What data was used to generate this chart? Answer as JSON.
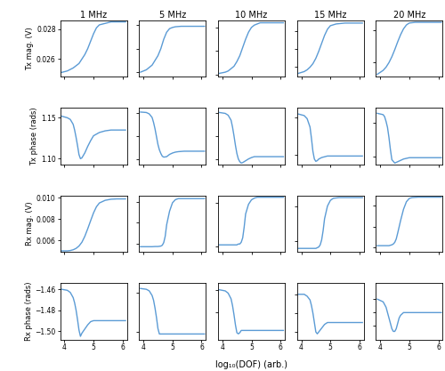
{
  "col_titles": [
    "1 MHz",
    "5 MHz",
    "10 MHz",
    "15 MHz",
    "20 MHz"
  ],
  "row_labels": [
    "Tx mag. (V)",
    "Tx phase (rads)",
    "Rx mag. (V)",
    "Rx phase (rads)"
  ],
  "xlabel": "log₁₀(DOF) (arb.)",
  "line_color": "#5B9BD5",
  "line_width": 1.0,
  "x_ticks": [
    4,
    5,
    6
  ],
  "xlim": [
    3.85,
    6.15
  ],
  "subplots": {
    "tx_mag": {
      "1": {
        "ylim": [
          0.0248,
          0.0286
        ],
        "yticks": [
          0.026,
          0.028
        ],
        "x": [
          3.9,
          4.1,
          4.3,
          4.5,
          4.6,
          4.7,
          4.8,
          4.9,
          5.0,
          5.1,
          5.2,
          5.4,
          5.6,
          5.8,
          6.0,
          6.1
        ],
        "y": [
          0.0251,
          0.0252,
          0.0254,
          0.0257,
          0.026,
          0.0263,
          0.0267,
          0.0272,
          0.0277,
          0.0281,
          0.0283,
          0.0284,
          0.0285,
          0.0285,
          0.0285,
          0.0285
        ]
      },
      "5": {
        "ylim": [
          0.108,
          0.132
        ],
        "yticks": [
          0.11,
          0.12,
          0.13
        ],
        "x": [
          3.9,
          4.1,
          4.2,
          4.3,
          4.4,
          4.5,
          4.6,
          4.7,
          4.8,
          4.9,
          5.0,
          5.1,
          5.3,
          5.5,
          5.8,
          6.1
        ],
        "y": [
          0.11,
          0.111,
          0.112,
          0.113,
          0.115,
          0.117,
          0.12,
          0.124,
          0.127,
          0.1285,
          0.129,
          0.1293,
          0.1295,
          0.1295,
          0.1295,
          0.1295
        ]
      },
      "10": {
        "ylim": [
          0.218,
          0.266
        ],
        "yticks": [
          0.22,
          0.24,
          0.26
        ],
        "x": [
          3.9,
          4.1,
          4.2,
          4.3,
          4.4,
          4.5,
          4.6,
          4.7,
          4.8,
          4.9,
          5.0,
          5.1,
          5.3,
          5.5,
          5.8,
          6.1
        ],
        "y": [
          0.221,
          0.222,
          0.223,
          0.225,
          0.227,
          0.231,
          0.236,
          0.243,
          0.25,
          0.256,
          0.26,
          0.262,
          0.264,
          0.264,
          0.264,
          0.264
        ]
      },
      "15": {
        "ylim": [
          0.328,
          0.392
        ],
        "yticks": [
          0.34,
          0.36,
          0.38
        ],
        "x": [
          3.9,
          4.1,
          4.2,
          4.3,
          4.4,
          4.5,
          4.6,
          4.7,
          4.8,
          4.9,
          5.0,
          5.2,
          5.5,
          5.8,
          6.1
        ],
        "y": [
          0.332,
          0.334,
          0.336,
          0.339,
          0.343,
          0.349,
          0.357,
          0.366,
          0.375,
          0.382,
          0.386,
          0.388,
          0.389,
          0.389,
          0.389
        ]
      },
      "20": {
        "ylim": [
          0.428,
          0.515
        ],
        "yticks": [
          0.45,
          0.5
        ],
        "x": [
          3.9,
          4.0,
          4.1,
          4.2,
          4.3,
          4.4,
          4.5,
          4.6,
          4.7,
          4.8,
          4.9,
          5.0,
          5.2,
          5.5,
          5.8,
          6.1
        ],
        "y": [
          0.432,
          0.435,
          0.438,
          0.443,
          0.45,
          0.459,
          0.47,
          0.482,
          0.493,
          0.502,
          0.508,
          0.511,
          0.512,
          0.512,
          0.512,
          0.512
        ]
      }
    },
    "tx_phase": {
      "1": {
        "ylim": [
          1.093,
          1.162
        ],
        "yticks": [
          1.1,
          1.15
        ],
        "x": [
          3.9,
          4.1,
          4.2,
          4.3,
          4.35,
          4.4,
          4.45,
          4.5,
          4.55,
          4.6,
          4.7,
          4.8,
          4.9,
          5.0,
          5.2,
          5.4,
          5.6,
          5.8,
          6.1
        ],
        "y": [
          1.152,
          1.15,
          1.148,
          1.142,
          1.135,
          1.126,
          1.116,
          1.105,
          1.1,
          1.101,
          1.107,
          1.115,
          1.122,
          1.128,
          1.132,
          1.134,
          1.135,
          1.135,
          1.135
        ]
      },
      "5": {
        "ylim": [
          1.438,
          1.562
        ],
        "yticks": [
          1.45,
          1.5,
          1.55
        ],
        "x": [
          3.9,
          4.1,
          4.2,
          4.3,
          4.35,
          4.4,
          4.45,
          4.5,
          4.55,
          4.6,
          4.65,
          4.7,
          4.8,
          4.9,
          5.0,
          5.1,
          5.2,
          5.4,
          5.6,
          6.1
        ],
        "y": [
          1.553,
          1.552,
          1.549,
          1.541,
          1.53,
          1.516,
          1.499,
          1.482,
          1.47,
          1.462,
          1.456,
          1.454,
          1.455,
          1.46,
          1.463,
          1.465,
          1.466,
          1.467,
          1.467,
          1.467
        ]
      },
      "10": {
        "ylim": [
          1.488,
          1.612
        ],
        "yticks": [
          1.5,
          1.55,
          1.6
        ],
        "x": [
          3.9,
          4.1,
          4.2,
          4.3,
          4.35,
          4.4,
          4.45,
          4.5,
          4.55,
          4.6,
          4.65,
          4.7,
          4.8,
          4.9,
          5.0,
          5.1,
          5.2,
          5.4,
          5.6,
          6.1
        ],
        "y": [
          1.602,
          1.6,
          1.596,
          1.585,
          1.57,
          1.551,
          1.53,
          1.512,
          1.5,
          1.494,
          1.491,
          1.492,
          1.496,
          1.5,
          1.503,
          1.505,
          1.505,
          1.505,
          1.505,
          1.505
        ]
      },
      "15": {
        "ylim": [
          1.538,
          1.612
        ],
        "yticks": [
          1.55,
          1.6
        ],
        "x": [
          3.9,
          4.1,
          4.2,
          4.3,
          4.35,
          4.4,
          4.45,
          4.5,
          4.55,
          4.6,
          4.65,
          4.7,
          4.8,
          4.9,
          5.0,
          5.1,
          5.2,
          5.4,
          5.6,
          6.1
        ],
        "y": [
          1.604,
          1.602,
          1.598,
          1.587,
          1.572,
          1.555,
          1.545,
          1.542,
          1.543,
          1.545,
          1.546,
          1.547,
          1.548,
          1.549,
          1.549,
          1.549,
          1.549,
          1.549,
          1.549,
          1.549
        ]
      },
      "20": {
        "ylim": [
          1.538,
          1.622
        ],
        "yticks": [
          1.55,
          1.6
        ],
        "x": [
          3.9,
          4.1,
          4.15,
          4.2,
          4.25,
          4.3,
          4.35,
          4.4,
          4.5,
          4.6,
          4.7,
          4.8,
          4.9,
          5.0,
          5.1,
          5.2,
          5.4,
          5.6,
          6.1
        ],
        "y": [
          1.614,
          1.612,
          1.609,
          1.602,
          1.593,
          1.578,
          1.56,
          1.545,
          1.54,
          1.542,
          1.544,
          1.546,
          1.547,
          1.548,
          1.548,
          1.548,
          1.548,
          1.548,
          1.548
        ]
      }
    },
    "rx_mag": {
      "1": {
        "ylim": [
          0.00495,
          0.0102
        ],
        "yticks": [
          0.006,
          0.008,
          0.01
        ],
        "x": [
          3.9,
          4.1,
          4.2,
          4.3,
          4.4,
          4.5,
          4.6,
          4.7,
          4.8,
          4.9,
          5.0,
          5.1,
          5.2,
          5.4,
          5.6,
          5.8,
          6.1
        ],
        "y": [
          0.00505,
          0.00505,
          0.00508,
          0.00515,
          0.00528,
          0.0055,
          0.00585,
          0.0064,
          0.0071,
          0.00785,
          0.00858,
          0.00915,
          0.0095,
          0.00975,
          0.00985,
          0.00988,
          0.00988
        ]
      },
      "5": {
        "ylim": [
          0.026,
          0.053
        ],
        "yticks": [
          0.03,
          0.04,
          0.05
        ],
        "x": [
          3.9,
          4.1,
          4.2,
          4.3,
          4.4,
          4.5,
          4.55,
          4.6,
          4.65,
          4.7,
          4.75,
          4.8,
          4.9,
          5.0,
          5.1,
          5.2,
          5.4,
          5.6,
          6.1
        ],
        "y": [
          0.0285,
          0.0285,
          0.0285,
          0.0285,
          0.0286,
          0.0286,
          0.0287,
          0.0288,
          0.0292,
          0.0305,
          0.0335,
          0.039,
          0.0455,
          0.0495,
          0.051,
          0.0515,
          0.0515,
          0.0515,
          0.0515
        ]
      },
      "10": {
        "ylim": [
          0.044,
          0.108
        ],
        "yticks": [
          0.05,
          0.1
        ],
        "x": [
          3.9,
          4.1,
          4.2,
          4.3,
          4.4,
          4.5,
          4.55,
          4.6,
          4.65,
          4.7,
          4.75,
          4.8,
          4.9,
          5.0,
          5.1,
          5.2,
          5.4,
          5.6,
          6.1
        ],
        "y": [
          0.052,
          0.052,
          0.052,
          0.052,
          0.052,
          0.052,
          0.053,
          0.053,
          0.055,
          0.06,
          0.072,
          0.087,
          0.098,
          0.103,
          0.105,
          0.106,
          0.106,
          0.106,
          0.106
        ]
      },
      "15": {
        "ylim": [
          0.085,
          0.165
        ],
        "yticks": [
          0.1,
          0.15
        ],
        "x": [
          3.9,
          4.1,
          4.2,
          4.3,
          4.4,
          4.45,
          4.5,
          4.55,
          4.6,
          4.65,
          4.7,
          4.75,
          4.8,
          4.9,
          5.0,
          5.1,
          5.3,
          5.5,
          6.1
        ],
        "y": [
          0.09,
          0.09,
          0.09,
          0.09,
          0.09,
          0.09,
          0.09,
          0.091,
          0.092,
          0.095,
          0.102,
          0.115,
          0.132,
          0.15,
          0.158,
          0.161,
          0.162,
          0.162,
          0.162
        ]
      },
      "20": {
        "ylim": [
          0.09,
          0.225
        ],
        "yticks": [
          0.1,
          0.15,
          0.2
        ],
        "x": [
          3.9,
          4.0,
          4.1,
          4.15,
          4.2,
          4.25,
          4.3,
          4.35,
          4.4,
          4.45,
          4.5,
          4.55,
          4.6,
          4.7,
          4.8,
          4.9,
          5.0,
          5.1,
          5.3,
          5.5,
          6.1
        ],
        "y": [
          0.105,
          0.105,
          0.105,
          0.105,
          0.105,
          0.105,
          0.105,
          0.106,
          0.107,
          0.109,
          0.113,
          0.121,
          0.135,
          0.165,
          0.192,
          0.21,
          0.218,
          0.22,
          0.221,
          0.221,
          0.221
        ]
      }
    },
    "rx_phase": {
      "1": {
        "ylim": [
          -1.508,
          -1.454
        ],
        "yticks": [
          -1.5,
          -1.48,
          -1.46
        ],
        "x": [
          3.9,
          4.1,
          4.2,
          4.3,
          4.35,
          4.4,
          4.45,
          4.5,
          4.55,
          4.6,
          4.7,
          4.8,
          4.9,
          5.0,
          5.1,
          5.2,
          5.5,
          6.1
        ],
        "y": [
          -1.46,
          -1.461,
          -1.463,
          -1.468,
          -1.473,
          -1.48,
          -1.489,
          -1.499,
          -1.505,
          -1.502,
          -1.498,
          -1.494,
          -1.491,
          -1.49,
          -1.49,
          -1.49,
          -1.49,
          -1.49
        ]
      },
      "5": {
        "ylim": [
          -1.51,
          -1.438
        ],
        "yticks": [
          -1.5,
          -1.45
        ],
        "x": [
          3.9,
          4.1,
          4.2,
          4.3,
          4.35,
          4.4,
          4.45,
          4.5,
          4.55,
          4.6,
          4.65,
          4.7,
          4.8,
          4.9,
          5.0,
          5.1,
          5.3,
          5.6,
          6.1
        ],
        "y": [
          -1.445,
          -1.446,
          -1.448,
          -1.454,
          -1.46,
          -1.47,
          -1.482,
          -1.496,
          -1.503,
          -1.503,
          -1.503,
          -1.503,
          -1.503,
          -1.503,
          -1.503,
          -1.503,
          -1.503,
          -1.503,
          -1.503
        ]
      },
      "10": {
        "ylim": [
          -1.524,
          -1.474
        ],
        "yticks": [
          -1.5,
          -1.48
        ],
        "x": [
          3.9,
          4.1,
          4.2,
          4.3,
          4.35,
          4.4,
          4.45,
          4.5,
          4.55,
          4.6,
          4.65,
          4.7,
          4.8,
          4.9,
          5.0,
          5.1,
          5.3,
          5.6,
          6.1
        ],
        "y": [
          -1.48,
          -1.481,
          -1.483,
          -1.488,
          -1.494,
          -1.502,
          -1.511,
          -1.518,
          -1.519,
          -1.518,
          -1.516,
          -1.516,
          -1.516,
          -1.516,
          -1.516,
          -1.516,
          -1.516,
          -1.516,
          -1.516
        ]
      },
      "15": {
        "ylim": [
          -1.524,
          -1.494
        ],
        "yticks": [
          -1.52,
          -1.51,
          -1.5
        ],
        "x": [
          3.9,
          4.1,
          4.2,
          4.3,
          4.35,
          4.4,
          4.45,
          4.5,
          4.55,
          4.6,
          4.65,
          4.7,
          4.75,
          4.8,
          4.9,
          5.0,
          5.1,
          5.3,
          5.6,
          6.1
        ],
        "y": [
          -1.5,
          -1.5,
          -1.501,
          -1.503,
          -1.506,
          -1.51,
          -1.515,
          -1.52,
          -1.521,
          -1.52,
          -1.519,
          -1.518,
          -1.517,
          -1.516,
          -1.515,
          -1.515,
          -1.515,
          -1.515,
          -1.515,
          -1.515
        ]
      },
      "20": {
        "ylim": [
          -1.525,
          -1.504
        ],
        "yticks": [
          -1.52,
          -1.515,
          -1.51
        ],
        "x": [
          3.9,
          4.1,
          4.15,
          4.2,
          4.25,
          4.3,
          4.35,
          4.4,
          4.45,
          4.5,
          4.55,
          4.6,
          4.65,
          4.7,
          4.8,
          4.9,
          5.0,
          5.1,
          5.2,
          5.3,
          5.5,
          6.1
        ],
        "y": [
          -1.51,
          -1.511,
          -1.512,
          -1.513,
          -1.515,
          -1.517,
          -1.519,
          -1.521,
          -1.522,
          -1.522,
          -1.521,
          -1.519,
          -1.517,
          -1.516,
          -1.515,
          -1.515,
          -1.515,
          -1.515,
          -1.515,
          -1.515,
          -1.515,
          -1.515
        ]
      }
    }
  }
}
